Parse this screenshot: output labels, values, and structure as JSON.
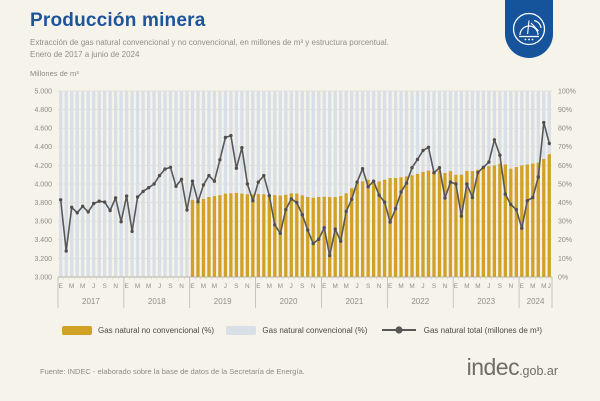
{
  "header": {
    "title": "Producción minera",
    "subtitle_line1": "Extracción de gas natural convencional y no convencional, en millones de m³ y estructura porcentual.",
    "subtitle_line2": "Enero de 2017 a junio de 2024",
    "badge_icon": "mining-derrick-icon",
    "badge_color": "#15549B"
  },
  "chart_data": {
    "type": "combo-bar-line",
    "title": "Producción minera",
    "grid": "horizontal",
    "y_left": {
      "label": "Millones de m³",
      "min": 3000,
      "max": 5000,
      "step": 200
    },
    "y_right": {
      "min": 0,
      "max": 100,
      "step": 10,
      "suffix": "%"
    },
    "years": [
      {
        "label": "2017",
        "months": 12,
        "letters": [
          [
            "E",
            0
          ],
          [
            "M",
            2
          ],
          [
            "M",
            4
          ],
          [
            "J",
            6
          ],
          [
            "S",
            8
          ],
          [
            "N",
            10
          ]
        ]
      },
      {
        "label": "2018",
        "months": 12,
        "letters": [
          [
            "E",
            0
          ],
          [
            "M",
            2
          ],
          [
            "M",
            4
          ],
          [
            "J",
            6
          ],
          [
            "S",
            8
          ],
          [
            "N",
            10
          ]
        ]
      },
      {
        "label": "2019",
        "months": 12,
        "letters": [
          [
            "E",
            0
          ],
          [
            "M",
            2
          ],
          [
            "M",
            4
          ],
          [
            "J",
            6
          ],
          [
            "S",
            8
          ],
          [
            "N",
            10
          ]
        ]
      },
      {
        "label": "2020",
        "months": 12,
        "letters": [
          [
            "E",
            0
          ],
          [
            "M",
            2
          ],
          [
            "M",
            4
          ],
          [
            "J",
            6
          ],
          [
            "S",
            8
          ],
          [
            "N",
            10
          ]
        ]
      },
      {
        "label": "2021",
        "months": 12,
        "letters": [
          [
            "E",
            0
          ],
          [
            "M",
            2
          ],
          [
            "M",
            4
          ],
          [
            "J",
            6
          ],
          [
            "S",
            8
          ],
          [
            "N",
            10
          ]
        ]
      },
      {
        "label": "2022",
        "months": 12,
        "letters": [
          [
            "E",
            0
          ],
          [
            "M",
            2
          ],
          [
            "M",
            4
          ],
          [
            "J",
            6
          ],
          [
            "S",
            8
          ],
          [
            "N",
            10
          ]
        ]
      },
      {
        "label": "2023",
        "months": 12,
        "letters": [
          [
            "E",
            0
          ],
          [
            "M",
            2
          ],
          [
            "M",
            4
          ],
          [
            "J",
            6
          ],
          [
            "S",
            8
          ],
          [
            "N",
            10
          ]
        ]
      },
      {
        "label": "2024",
        "months": 6,
        "letters": [
          [
            "E",
            0
          ],
          [
            "M",
            2
          ],
          [
            "M",
            4
          ],
          [
            "J",
            5
          ]
        ]
      }
    ],
    "line": {
      "name": "Gas natural total (millones de m³)",
      "color": "#58585A",
      "dot_color": "#4F4F52",
      "values": [
        3830,
        3280,
        3750,
        3690,
        3760,
        3700,
        3790,
        3815,
        3805,
        3715,
        3850,
        3595,
        3870,
        3490,
        3860,
        3920,
        3960,
        4000,
        4090,
        4160,
        4180,
        3975,
        4050,
        3720,
        4030,
        3810,
        3990,
        4090,
        4030,
        4260,
        4500,
        4520,
        4170,
        4390,
        4000,
        3820,
        4020,
        4090,
        3875,
        3560,
        3470,
        3725,
        3840,
        3800,
        3670,
        3505,
        3360,
        3405,
        3530,
        3230,
        3515,
        3385,
        3705,
        3835,
        4020,
        4165,
        3970,
        4030,
        3880,
        3805,
        3590,
        3735,
        3915,
        4010,
        4175,
        4265,
        4360,
        4395,
        4120,
        4175,
        3850,
        4020,
        4000,
        3655,
        4000,
        3855,
        4125,
        4180,
        4235,
        4475,
        4310,
        3890,
        3780,
        3725,
        3525,
        3820,
        3855,
        4075,
        4660,
        4435
      ]
    },
    "bars_non_conventional_pct": {
      "name": "Gas natural no convencional (%)",
      "color": "#D2A226",
      "values": [
        null,
        null,
        null,
        null,
        null,
        null,
        null,
        null,
        null,
        null,
        null,
        null,
        null,
        null,
        null,
        null,
        null,
        null,
        null,
        null,
        null,
        null,
        null,
        null,
        41.5,
        41.5,
        42,
        43,
        43.5,
        44,
        44.8,
        45,
        45.2,
        44.8,
        44.5,
        44.4,
        44.6,
        44.5,
        44,
        44,
        43.8,
        44.2,
        45,
        44.9,
        43.9,
        43,
        42.6,
        43,
        43.1,
        43,
        43,
        43.5,
        45,
        47.7,
        50.5,
        51.4,
        52.3,
        51.8,
        51.4,
        52.3,
        53.2,
        53.2,
        53.6,
        54.1,
        54.7,
        55.4,
        56.5,
        57.2,
        56.9,
        57.2,
        55.9,
        56.9,
        55,
        55,
        57,
        57,
        57.6,
        58.5,
        59.6,
        60,
        60.9,
        60.5,
        58.2,
        59.1,
        60,
        60.5,
        61,
        61.5,
        63.5,
        66
      ]
    },
    "bars_conventional_pct": {
      "name": "Gas natural convencional (%)",
      "color": "#D9DFE7",
      "note": "drawn as full-height background columns (conventional = remainder to 100%)"
    }
  },
  "legend": {
    "items": [
      {
        "label": "Gas natural no convencional (%)",
        "color": "#D2A226",
        "type": "bar"
      },
      {
        "label": "Gas natural convencional (%)",
        "color": "#D9DFE7",
        "type": "bar"
      },
      {
        "label": "Gas natural total (millones de m³)",
        "color": "#58585A",
        "type": "line"
      }
    ]
  },
  "footer": {
    "source": "Fuente: INDEC - elaborado sobre la base de datos de la Secretaría de Energía.",
    "logo_main": "indec",
    "logo_suffix": ".gob.ar"
  }
}
